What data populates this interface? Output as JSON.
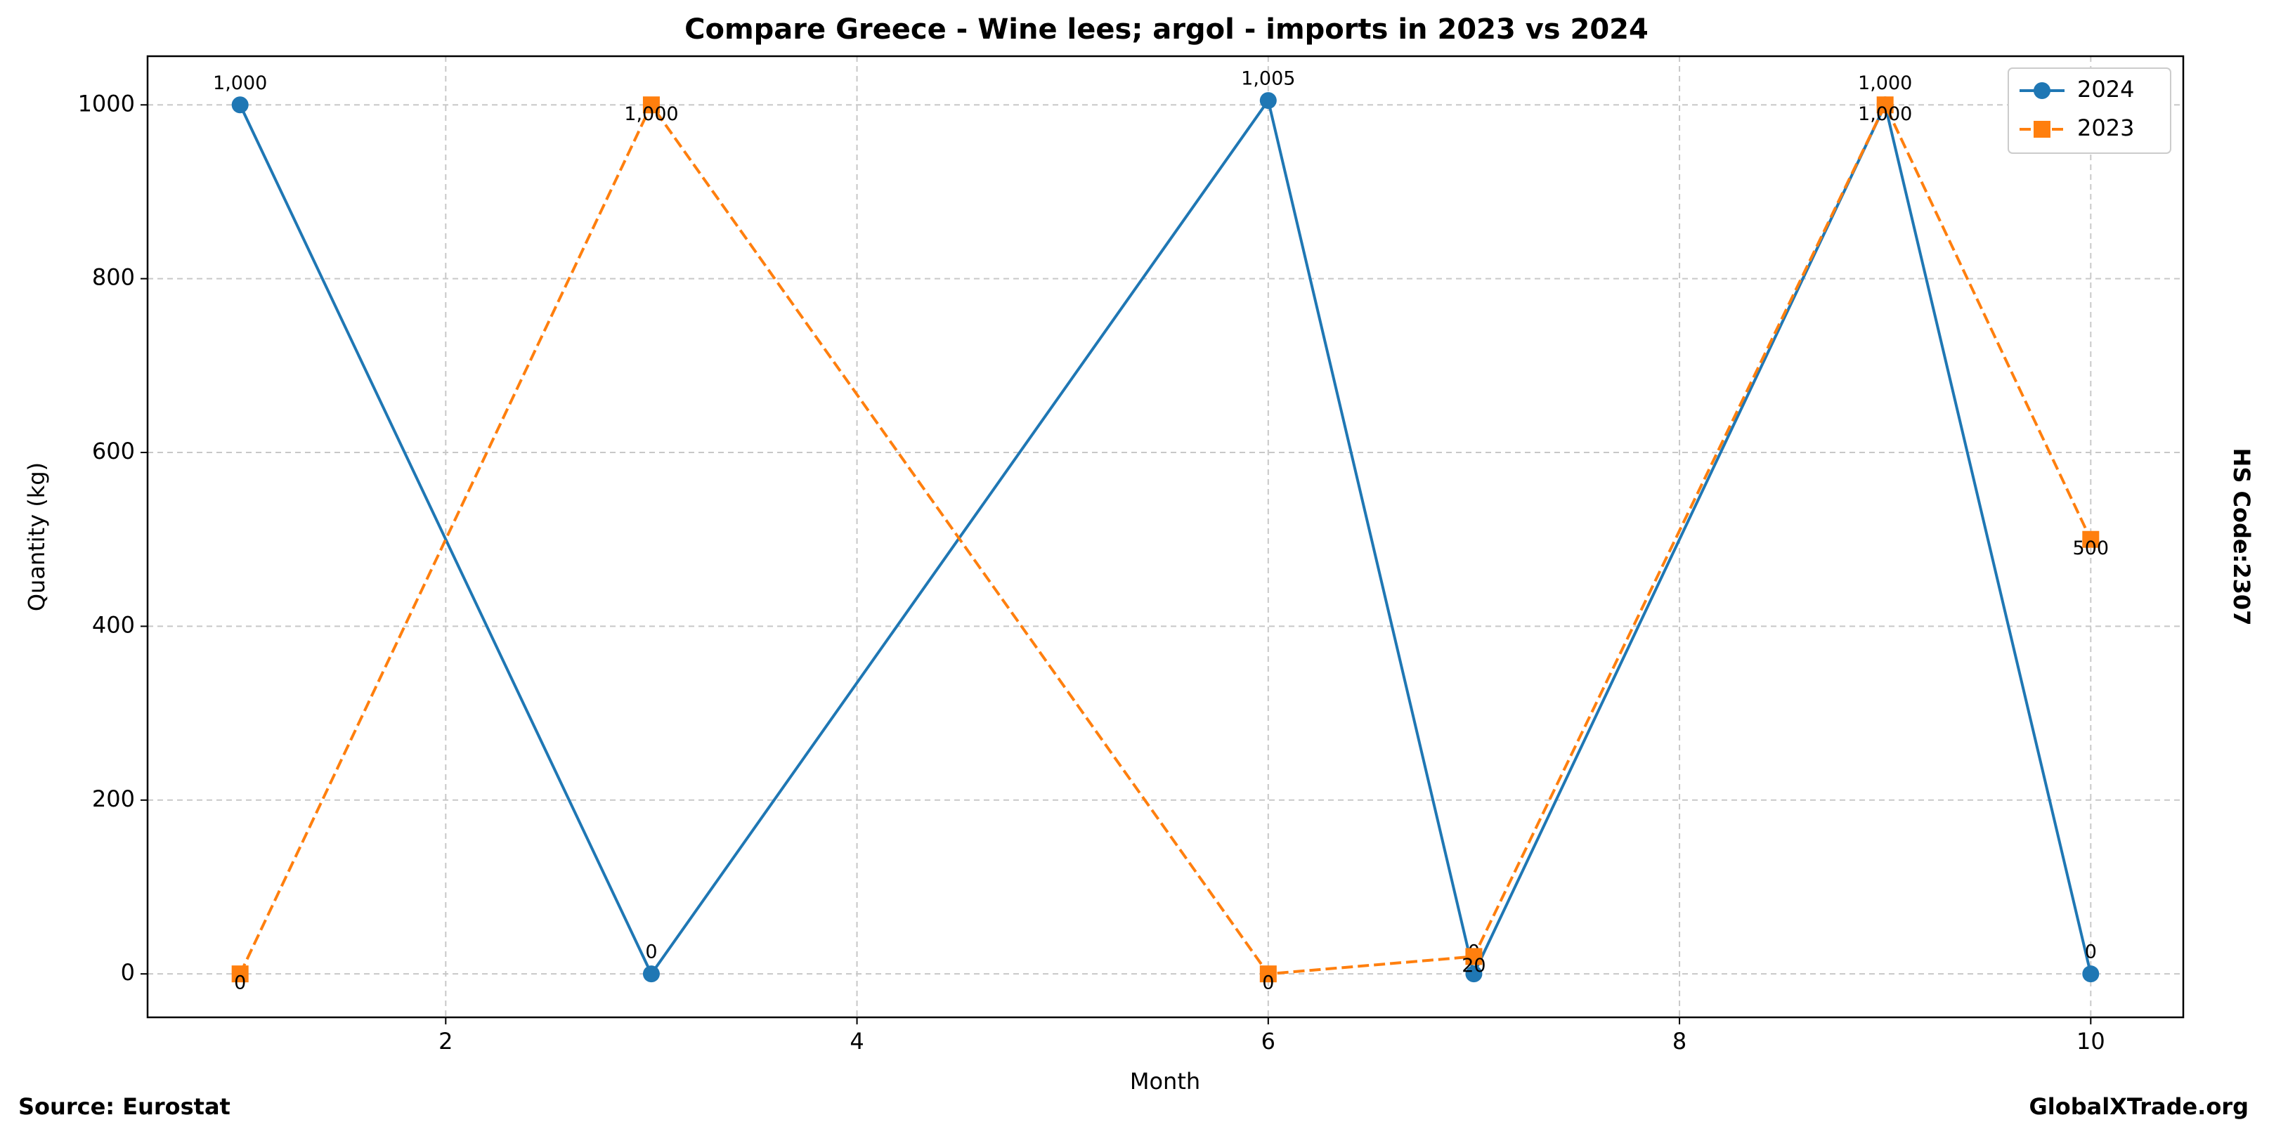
{
  "chart_data": {
    "type": "line",
    "title": "Compare Greece - Wine lees; argol - imports in 2023 vs 2024",
    "x_label": "Month",
    "y_label": "Quantity (kg)",
    "side_note": "HS Code:2307",
    "source": "Source: Eurostat",
    "brand": "GlobalXTrade.org",
    "x": [
      1,
      3,
      6,
      7,
      9,
      10
    ],
    "series": [
      {
        "name": "2024",
        "color": "#1f77b4",
        "marker": "circle",
        "linestyle": "solid",
        "values": [
          1000,
          0,
          1005,
          0,
          1000,
          0
        ],
        "value_labels": [
          "1,000",
          "0",
          "1,005",
          "0",
          "1,000",
          "0"
        ]
      },
      {
        "name": "2023",
        "color": "#ff7f0e",
        "marker": "square",
        "linestyle": "dashed",
        "values": [
          0,
          1000,
          0,
          20,
          1000,
          500
        ],
        "value_labels": [
          "0",
          "1,000",
          "0",
          "20",
          "1,000",
          "500"
        ]
      }
    ],
    "xlim": [
      0.55,
      10.45
    ],
    "xticks": [
      2,
      4,
      6,
      8,
      10
    ],
    "ylim": [
      -50,
      1056
    ],
    "yticks": [
      0,
      200,
      400,
      600,
      800,
      1000
    ],
    "grid": true,
    "legend": "upper right"
  }
}
